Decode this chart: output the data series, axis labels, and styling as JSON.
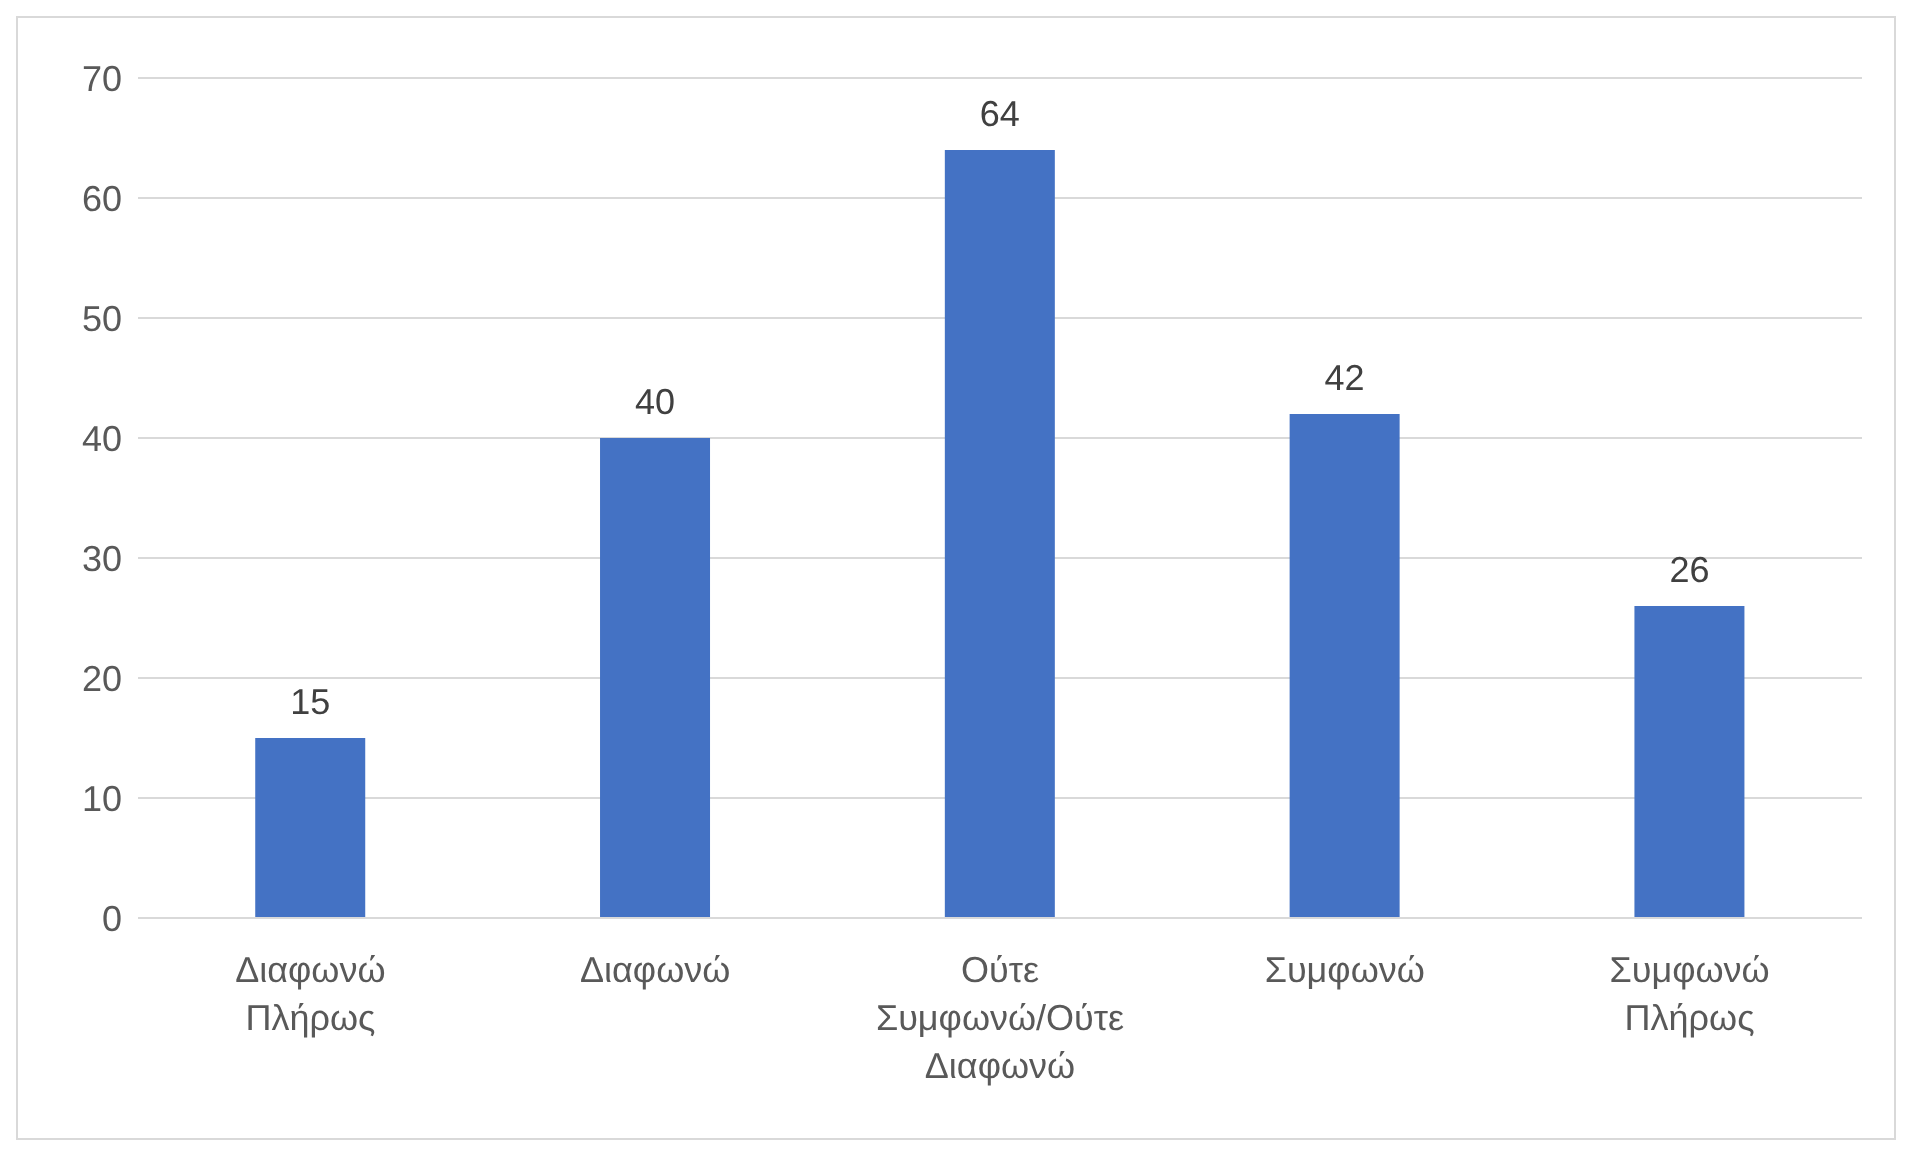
{
  "chart_data": {
    "type": "bar",
    "categories": [
      "Διαφωνώ Πλήρως",
      "Διαφωνώ",
      "Ούτε Συμφωνώ/Ούτε Διαφωνώ",
      "Συμφωνώ",
      "Συμφωνώ Πλήρως"
    ],
    "values": [
      15,
      40,
      64,
      42,
      26
    ],
    "color": "#4472c4",
    "ylim": [
      0,
      70
    ],
    "yticks": [
      0,
      10,
      20,
      30,
      40,
      50,
      60,
      70
    ],
    "grid": "y",
    "data_labels": true
  }
}
